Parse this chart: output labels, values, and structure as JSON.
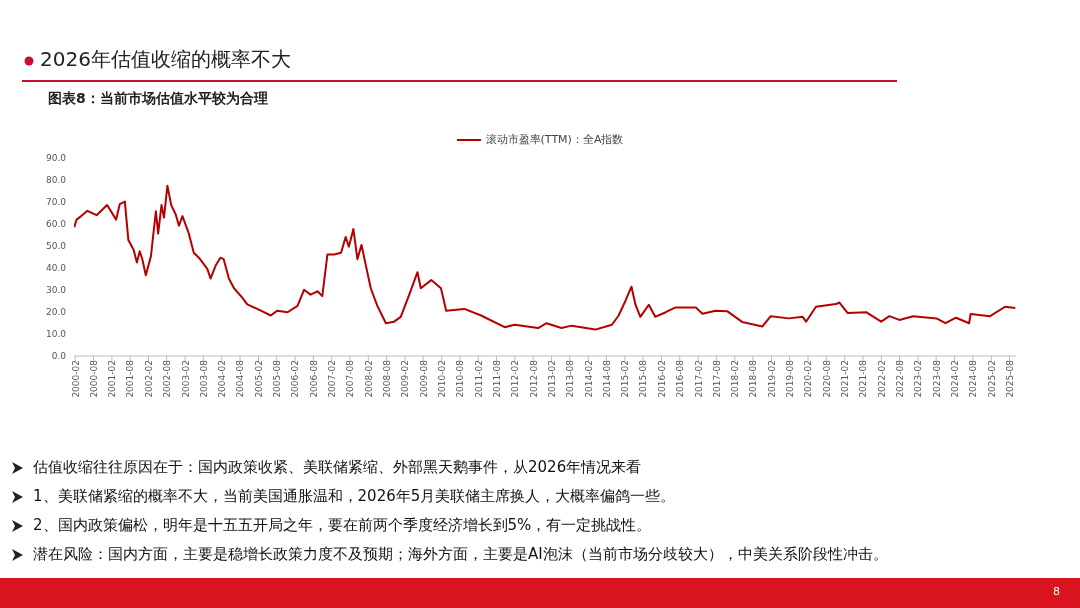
{
  "chart_data": {
    "type": "line",
    "title": "2026年估值收缩的概率不大",
    "subtitle": "图表8：当前市场估值水平较为合理",
    "annotations": [
      "估值收缩往往原因在于：国内政策收紧、美联储紧缩、外部黑天鹅事件，从2026年情况来看",
      "1、美联储紧缩的概率不大，当前美国通胀温和，2026年5月美联储主席换人，大概率偏鸽一些。",
      "2、国内政策偏松，明年是十五五开局之年，要在前两个季度经济增长到5%，有一定挑战性。",
      "潜在风险：国内方面，主要是稳增长政策力度不及预期；海外方面，主要是AI泡沫（当前市场分歧较大），中美关系阶段性冲击。",
      "8"
    ],
    "x": [
      "2000-01-22",
      "2000-02-15",
      "2000-04-01",
      "2000-06-01",
      "2000-09-01",
      "2000-12-15",
      "2001-03-15",
      "2001-04-20",
      "2001-06-10",
      "2001-07-15",
      "2001-09-05",
      "2001-10-08",
      "2001-11-05",
      "2001-12-01",
      "2002-01-05",
      "2002-02-25",
      "2002-04-15",
      "2002-05-08",
      "2002-06-10",
      "2002-07-05",
      "2002-08-08",
      "2002-09-15",
      "2002-10-30",
      "2002-12-01",
      "2003-01-05",
      "2003-03-10",
      "2003-04-28",
      "2003-06-18",
      "2003-09-10",
      "2003-10-12",
      "2003-12-01",
      "2004-01-18",
      "2004-02-20",
      "2004-04-12",
      "2004-06-02",
      "2004-08-25",
      "2004-10-12",
      "2005-02-25",
      "2005-06-03",
      "2005-08-08",
      "2005-11-18",
      "2006-02-25",
      "2006-05-01",
      "2006-07-05",
      "2006-09-12",
      "2006-10-30",
      "2006-12-20",
      "2007-02-25",
      "2007-05-05",
      "2007-06-20",
      "2007-07-22",
      "2007-09-05",
      "2007-10-15",
      "2007-11-25",
      "2008-01-08",
      "2008-02-25",
      "2008-05-01",
      "2008-07-25",
      "2008-10-15",
      "2008-12-20",
      "2009-03-15",
      "2009-06-05",
      "2009-07-08",
      "2009-10-20",
      "2010-01-25",
      "2010-03-18",
      "2010-09-15",
      "2011-03-01",
      "2011-10-22",
      "2012-01-30",
      "2012-09-20",
      "2012-12-12",
      "2013-05-10",
      "2013-08-20",
      "2014-04-12",
      "2014-09-25",
      "2014-12-01",
      "2015-02-05",
      "2015-04-08",
      "2015-05-18",
      "2015-07-05",
      "2015-09-28",
      "2015-12-01",
      "2016-03-15",
      "2016-06-20",
      "2017-01-08",
      "2017-03-15",
      "2017-07-25",
      "2017-11-20",
      "2018-04-15",
      "2018-08-28",
      "2018-11-02",
      "2019-01-25",
      "2019-07-25",
      "2019-12-10",
      "2020-01-12",
      "2020-04-20",
      "2020-11-05",
      "2020-12-10",
      "2021-03-02",
      "2021-09-02",
      "2022-01-30",
      "2022-04-22",
      "2022-07-30",
      "2022-12-15",
      "2023-08-05",
      "2023-11-02",
      "2024-02-15",
      "2024-06-25",
      "2024-07-10",
      "2025-01-20",
      "2025-06-18",
      "2025-09-28"
    ],
    "series": [
      {
        "name": "滚动市盈率(TTM)：全A指数",
        "color": "#b40000",
        "values": [
          58.5,
          62,
          63.6,
          66,
          64,
          68.6,
          62,
          69,
          70.2,
          52.7,
          48.3,
          42.5,
          47.6,
          44,
          36.7,
          45.4,
          65.8,
          55.6,
          68.6,
          62.9,
          77.4,
          68.6,
          64.3,
          59.2,
          63.6,
          55.6,
          46.9,
          44.7,
          39.6,
          35.2,
          41,
          44.7,
          44,
          35.2,
          30.8,
          26.4,
          23.5,
          20.6,
          18.4,
          20.6,
          19.9,
          22.8,
          30.1,
          27.9,
          29.4,
          27.2,
          46.1,
          46.1,
          46.9,
          54.1,
          49.7,
          57.7,
          44,
          50.5,
          41,
          30.8,
          22.8,
          14.9,
          15.6,
          17.8,
          27.9,
          38.1,
          30.8,
          34.5,
          30.8,
          20.6,
          21.4,
          18.4,
          13.1,
          14.2,
          12.7,
          14.9,
          12.7,
          13.8,
          12,
          14.2,
          18.4,
          24.9,
          31.5,
          23.3,
          17.8,
          23.3,
          17.8,
          19.9,
          22.1,
          22.1,
          19.2,
          20.6,
          20.3,
          15.5,
          14.1,
          13.4,
          18.1,
          17.1,
          17.8,
          15.6,
          22.4,
          23.6,
          24.3,
          19.5,
          19.9,
          15.6,
          18.1,
          16.4,
          18.1,
          17.1,
          14.9,
          17.4,
          14.9,
          19.1,
          18.1,
          22.4,
          21.8
        ]
      }
    ],
    "xlim": [
      "2000-01-20",
      "2025-10-05"
    ],
    "xticks": [
      "2000-02",
      "2000-08",
      "2001-02",
      "2001-08",
      "2002-02",
      "2002-08",
      "2003-02",
      "2003-08",
      "2004-02",
      "2004-08",
      "2005-02",
      "2005-08",
      "2006-02",
      "2006-08",
      "2007-02",
      "2007-08",
      "2008-02",
      "2008-08",
      "2009-02",
      "2009-08",
      "2010-02",
      "2010-08",
      "2011-02",
      "2011-08",
      "2012-02",
      "2012-08",
      "2013-02",
      "2013-08",
      "2014-02",
      "2014-08",
      "2015-02",
      "2015-08",
      "2016-02",
      "2016-08",
      "2017-02",
      "2017-08",
      "2018-02",
      "2018-08",
      "2019-02",
      "2019-08",
      "2020-02",
      "2020-08",
      "2021-02",
      "2021-08",
      "2022-02",
      "2022-08",
      "2023-02",
      "2023-08",
      "2024-02",
      "2024-08",
      "2025-02",
      "2025-08"
    ],
    "ylim": [
      0,
      90
    ],
    "yticks": [
      {
        "value": 0,
        "label": "0.0"
      },
      {
        "value": 10,
        "label": "10.0"
      },
      {
        "value": 20,
        "label": "20.0"
      },
      {
        "value": 30,
        "label": "30.0"
      },
      {
        "value": 40,
        "label": "40.0"
      },
      {
        "value": 50,
        "label": "50.0"
      },
      {
        "value": 60,
        "label": "60.0"
      },
      {
        "value": 70,
        "label": "70.0"
      },
      {
        "value": 80,
        "label": "80.0"
      },
      {
        "value": 90,
        "label": "90.0"
      }
    ],
    "grid": false,
    "legend": "top",
    "marker": "none",
    "line_style": "solid"
  }
}
